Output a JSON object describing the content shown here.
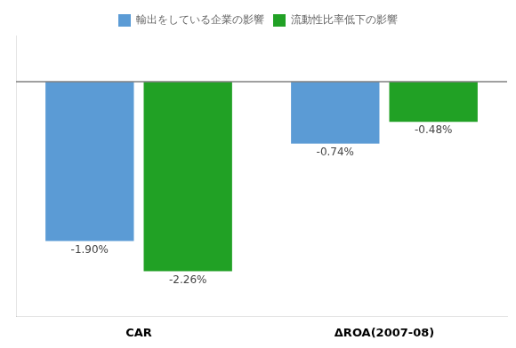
{
  "chart_data": {
    "type": "bar",
    "categories": [
      "CAR",
      "ΔROA(2007-08)"
    ],
    "series": [
      {
        "name": "輸出をしている企業の影響",
        "color": "#5b9bd5",
        "values": [
          -1.9,
          -0.74
        ],
        "value_labels": [
          "-1.90%",
          "-0.74%"
        ]
      },
      {
        "name": "流動性比率低下の影響",
        "color": "#21a125",
        "values": [
          -2.26,
          -0.48
        ],
        "value_labels": [
          "-2.26%",
          "-0.48%"
        ]
      }
    ],
    "ylim": [
      -2.8,
      0.55
    ],
    "grid": false,
    "legend": "top",
    "data_labels": true,
    "tick_labels": "x"
  }
}
